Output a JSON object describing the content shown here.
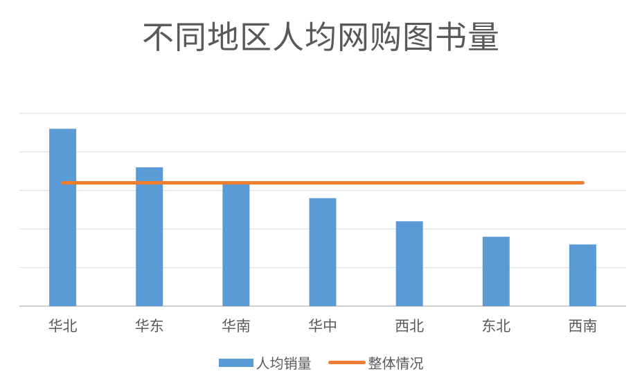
{
  "chart_data": {
    "type": "bar",
    "title": "不同地区人均网购图书量",
    "xlabel": "",
    "ylabel": "",
    "categories": [
      "华北",
      "华东",
      "华南",
      "华中",
      "西北",
      "东北",
      "西南"
    ],
    "ylim": [
      0,
      5
    ],
    "grid": true,
    "legend_position": "bottom",
    "series": [
      {
        "name": "人均销量",
        "kind": "bar",
        "color": "#5B9BD5",
        "values": [
          4.6,
          3.6,
          3.2,
          2.8,
          2.2,
          1.8,
          1.6
        ]
      },
      {
        "name": "整体情况",
        "kind": "line",
        "color": "#ED7D31",
        "values": [
          3.2,
          3.2,
          3.2,
          3.2,
          3.2,
          3.2,
          3.2
        ]
      }
    ]
  }
}
